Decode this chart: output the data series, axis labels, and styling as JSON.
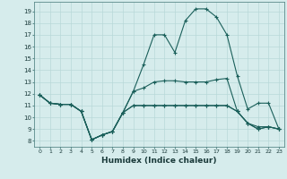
{
  "xlabel": "Humidex (Indice chaleur)",
  "ylabel": "",
  "background_color": "#d6ecec",
  "grid_color": "#b8d8d8",
  "line_color": "#1a5f5a",
  "xlim": [
    -0.5,
    23.5
  ],
  "ylim": [
    7.5,
    19.8
  ],
  "yticks": [
    8,
    9,
    10,
    11,
    12,
    13,
    14,
    15,
    16,
    17,
    18,
    19
  ],
  "xticks": [
    0,
    1,
    2,
    3,
    4,
    5,
    6,
    7,
    8,
    9,
    10,
    11,
    12,
    13,
    14,
    15,
    16,
    17,
    18,
    19,
    20,
    21,
    22,
    23
  ],
  "series": [
    [
      11.9,
      11.2,
      11.1,
      11.1,
      10.5,
      8.1,
      8.5,
      8.8,
      10.4,
      11.0,
      11.0,
      11.0,
      11.0,
      11.0,
      11.0,
      11.0,
      11.0,
      11.0,
      11.0,
      10.5,
      9.5,
      9.0,
      9.2,
      9.0
    ],
    [
      11.9,
      11.2,
      11.1,
      11.1,
      10.5,
      8.1,
      8.5,
      8.8,
      10.4,
      11.0,
      11.0,
      11.0,
      11.0,
      11.0,
      11.0,
      11.0,
      11.0,
      11.0,
      11.0,
      10.5,
      9.5,
      9.0,
      9.2,
      9.0
    ],
    [
      11.9,
      11.2,
      11.1,
      11.1,
      10.5,
      8.1,
      8.5,
      8.8,
      10.4,
      12.2,
      12.5,
      13.0,
      13.1,
      13.1,
      13.0,
      13.0,
      13.0,
      13.2,
      13.3,
      10.5,
      9.5,
      9.2,
      9.2,
      9.0
    ],
    [
      11.9,
      11.2,
      11.1,
      11.1,
      10.5,
      8.1,
      8.5,
      8.8,
      10.4,
      12.2,
      14.5,
      17.0,
      17.0,
      15.5,
      18.2,
      19.2,
      19.2,
      18.5,
      17.0,
      13.5,
      10.7,
      11.2,
      11.2,
      9.0
    ]
  ]
}
